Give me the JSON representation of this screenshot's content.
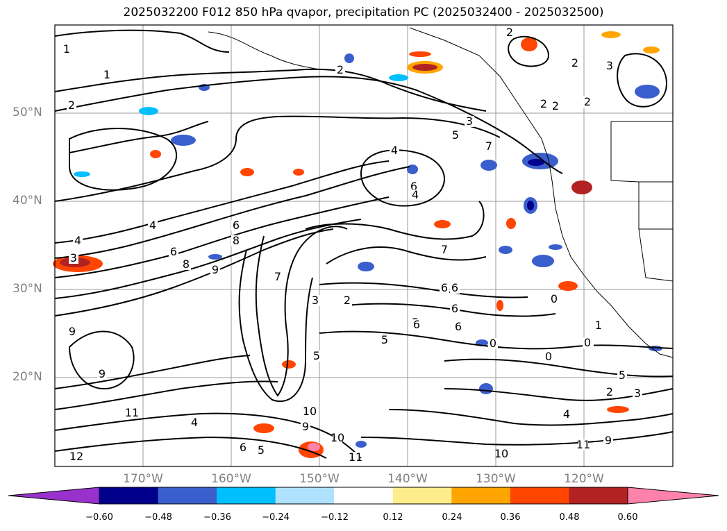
{
  "title": "2025032200 F012 850 hPa qvapor, precipitation PC (2025032400 - 2025032500)",
  "lat_labels": [
    "50°N",
    "40°N",
    "30°N",
    "20°N"
  ],
  "lon_labels": [
    "170°W",
    "160°W",
    "150°W",
    "140°W",
    "130°W",
    "120°W"
  ],
  "colorbar": {
    "tick_labels": [
      "−0.60",
      "−0.48",
      "−0.36",
      "−0.24",
      "−0.12",
      "0.12",
      "0.24",
      "0.36",
      "0.48",
      "0.60"
    ],
    "colors": [
      "#9932cc",
      "#00008b",
      "#3a5fcd",
      "#00bfff",
      "#b0e2ff",
      "#ffffff",
      "#ffec8b",
      "#ffa500",
      "#ff4500",
      "#b22222",
      "#ff82ab"
    ]
  },
  "contour_labels": [
    "1",
    "2",
    "1",
    "2",
    "2",
    "3",
    "5",
    "4",
    "7",
    "2",
    "2",
    "2",
    "2",
    "3",
    "6",
    "6",
    "4",
    "5",
    "7",
    "8",
    "8",
    "9",
    "7",
    "6",
    "5",
    "4",
    "3",
    "4",
    "6",
    "6",
    "0",
    "0",
    "1",
    "5",
    "6",
    "6",
    "9",
    "9",
    "11",
    "12",
    "10",
    "10",
    "11",
    "10",
    "9",
    "4",
    "5",
    "6",
    "5",
    "6",
    "3",
    "2",
    "0",
    "1",
    "0",
    "4",
    "11",
    "9",
    "3",
    "2"
  ]
}
